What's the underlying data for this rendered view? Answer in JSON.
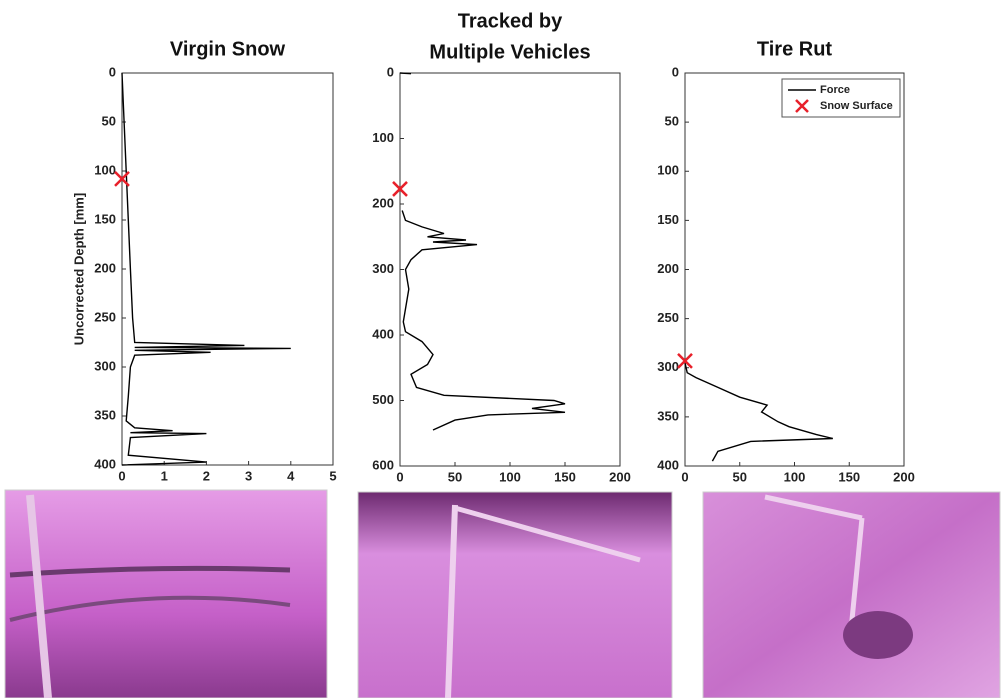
{
  "chart_data": [
    {
      "type": "line",
      "title": "Virgin Snow",
      "ylabel": "Uncorrected Depth [mm]",
      "y_reversed": true,
      "xlim": [
        0,
        5
      ],
      "xticks": [
        0,
        1,
        2,
        3,
        4,
        5
      ],
      "ylim": [
        0,
        400
      ],
      "yticks": [
        0,
        50,
        100,
        150,
        200,
        250,
        300,
        350,
        400
      ],
      "series": [
        {
          "color": "#000000",
          "x": [
            0,
            0.05,
            0.1,
            0.15,
            0.2,
            0.25,
            0.3,
            2.9,
            0.3,
            4,
            0.3,
            2.1,
            0.3,
            0.2,
            0.15,
            0.1,
            0.3,
            1.2,
            0.2,
            2.0,
            0.2,
            0.15,
            2,
            0
          ],
          "values": [
            0,
            50,
            100,
            150,
            200,
            250,
            275,
            278,
            280,
            281,
            283,
            285,
            288,
            300,
            330,
            355,
            362,
            365,
            367,
            368,
            372,
            390,
            397,
            400
          ]
        },
        {
          "color": "#e8202a",
          "marker": "x",
          "x": [
            0
          ],
          "values": [
            108
          ]
        }
      ]
    },
    {
      "type": "line",
      "title": [
        "Tracked by",
        "Multiple Vehicles"
      ],
      "y_reversed": true,
      "xlim": [
        0,
        200
      ],
      "xticks": [
        0,
        50,
        100,
        150,
        200
      ],
      "ylim": [
        0,
        600
      ],
      "yticks": [
        0,
        100,
        200,
        300,
        400,
        500,
        600
      ],
      "series": [
        {
          "color": "#000000",
          "x": [
            0,
            10,
            null,
            2,
            5,
            20,
            40,
            25,
            60,
            30,
            70,
            20,
            10,
            5,
            8,
            3,
            5,
            20,
            30,
            25,
            10,
            15,
            40,
            140,
            150,
            120,
            150,
            80,
            50,
            30
          ],
          "values": [
            0,
            1,
            null,
            210,
            225,
            235,
            245,
            250,
            255,
            258,
            262,
            270,
            285,
            300,
            330,
            380,
            395,
            410,
            430,
            445,
            460,
            480,
            492,
            500,
            505,
            512,
            518,
            522,
            530,
            545
          ]
        },
        {
          "color": "#e8202a",
          "marker": "x",
          "x": [
            0
          ],
          "values": [
            177
          ]
        }
      ]
    },
    {
      "type": "line",
      "title": "Tire Rut",
      "y_reversed": true,
      "legend": "upper right",
      "xlim": [
        0,
        200
      ],
      "xticks": [
        0,
        50,
        100,
        150,
        200
      ],
      "ylim": [
        0,
        400
      ],
      "yticks": [
        0,
        50,
        100,
        150,
        200,
        250,
        300,
        350,
        400
      ],
      "series": [
        {
          "name": "Force",
          "color": "#000000",
          "x": [
            0,
            2,
            10,
            30,
            50,
            75,
            70,
            85,
            95,
            120,
            135,
            60,
            30,
            25
          ],
          "values": [
            295,
            305,
            310,
            320,
            330,
            338,
            345,
            355,
            360,
            368,
            372,
            375,
            385,
            395
          ]
        },
        {
          "name": "Snow Surface",
          "color": "#e8202a",
          "marker": "x",
          "x": [
            0
          ],
          "values": [
            293
          ]
        }
      ]
    }
  ]
}
